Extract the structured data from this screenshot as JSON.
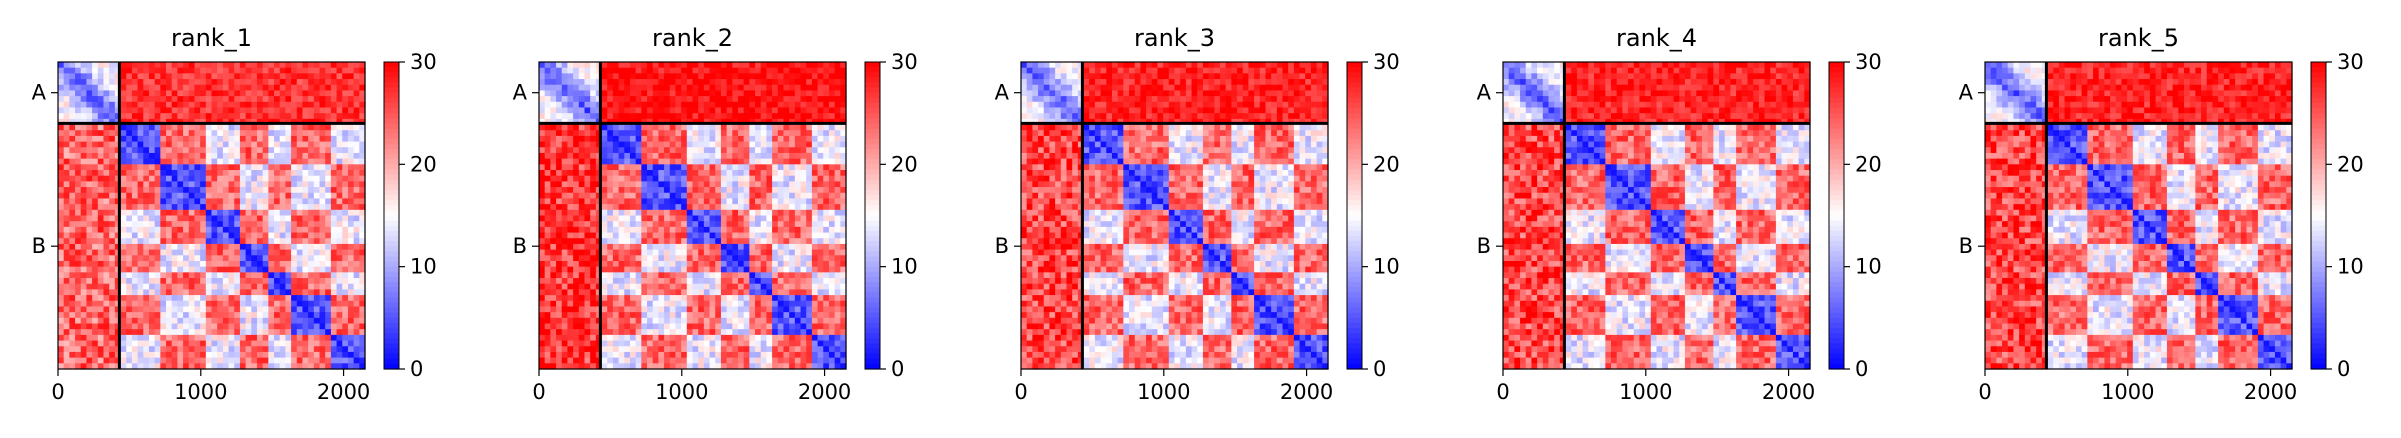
{
  "figure": {
    "background": "#ffffff"
  },
  "colormap": {
    "name": "bwr",
    "low": "#0000ff",
    "mid": "#ffffff",
    "high": "#ff0000",
    "vmin": 0,
    "vmax": 30
  },
  "chart_data": [
    {
      "type": "heatmap",
      "title": "rank_1",
      "x_ticks": [
        "0",
        "1000",
        "2000"
      ],
      "x_tick_values": [
        0,
        1000,
        2000
      ],
      "y_ticks": [
        "A",
        "B"
      ],
      "chain_boundary": 430,
      "xlim": [
        0,
        2150
      ],
      "ylim": [
        0,
        2150
      ],
      "colorbar_ticks": [
        "0",
        "10",
        "20",
        "30"
      ],
      "colorbar_values": [
        0,
        10,
        20,
        30
      ],
      "region_means": {
        "chainA_intra": 5,
        "chainA_chainB": 27,
        "chainB_chainA": 24,
        "chainB_intra": 14
      }
    },
    {
      "type": "heatmap",
      "title": "rank_2",
      "x_ticks": [
        "0",
        "1000",
        "2000"
      ],
      "x_tick_values": [
        0,
        1000,
        2000
      ],
      "y_ticks": [
        "A",
        "B"
      ],
      "chain_boundary": 430,
      "xlim": [
        0,
        2150
      ],
      "ylim": [
        0,
        2150
      ],
      "colorbar_ticks": [
        "0",
        "10",
        "20",
        "30"
      ],
      "colorbar_values": [
        0,
        10,
        20,
        30
      ],
      "region_means": {
        "chainA_intra": 5,
        "chainA_chainB": 29,
        "chainB_chainA": 27,
        "chainB_intra": 14
      }
    },
    {
      "type": "heatmap",
      "title": "rank_3",
      "x_ticks": [
        "0",
        "1000",
        "2000"
      ],
      "x_tick_values": [
        0,
        1000,
        2000
      ],
      "y_ticks": [
        "A",
        "B"
      ],
      "chain_boundary": 430,
      "xlim": [
        0,
        2150
      ],
      "ylim": [
        0,
        2150
      ],
      "colorbar_ticks": [
        "0",
        "10",
        "20",
        "30"
      ],
      "colorbar_values": [
        0,
        10,
        20,
        30
      ],
      "region_means": {
        "chainA_intra": 5,
        "chainA_chainB": 28,
        "chainB_chainA": 26,
        "chainB_intra": 14
      }
    },
    {
      "type": "heatmap",
      "title": "rank_4",
      "x_ticks": [
        "0",
        "1000",
        "2000"
      ],
      "x_tick_values": [
        0,
        1000,
        2000
      ],
      "y_ticks": [
        "A",
        "B"
      ],
      "chain_boundary": 430,
      "xlim": [
        0,
        2150
      ],
      "ylim": [
        0,
        2150
      ],
      "colorbar_ticks": [
        "0",
        "10",
        "20",
        "30"
      ],
      "colorbar_values": [
        0,
        10,
        20,
        30
      ],
      "region_means": {
        "chainA_intra": 5,
        "chainA_chainB": 28,
        "chainB_chainA": 26,
        "chainB_intra": 14
      }
    },
    {
      "type": "heatmap",
      "title": "rank_5",
      "x_ticks": [
        "0",
        "1000",
        "2000"
      ],
      "x_tick_values": [
        0,
        1000,
        2000
      ],
      "y_ticks": [
        "A",
        "B"
      ],
      "chain_boundary": 430,
      "xlim": [
        0,
        2150
      ],
      "ylim": [
        0,
        2150
      ],
      "colorbar_ticks": [
        "0",
        "10",
        "20",
        "30"
      ],
      "colorbar_values": [
        0,
        10,
        20,
        30
      ],
      "region_means": {
        "chainA_intra": 5,
        "chainA_chainB": 28,
        "chainB_chainA": 26,
        "chainB_intra": 14
      }
    }
  ]
}
